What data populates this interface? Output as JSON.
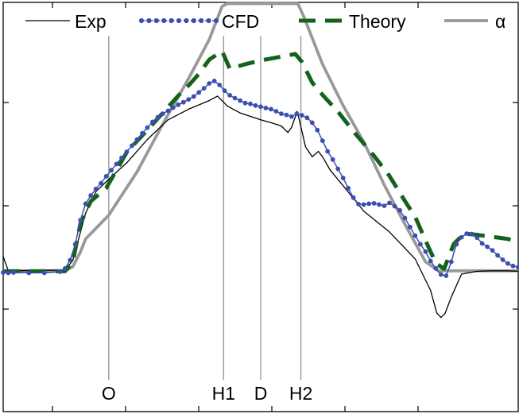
{
  "chart_data": {
    "type": "line",
    "title": "",
    "xlabel": "",
    "ylabel": "",
    "xlim": [
      0,
      100
    ],
    "ylim": [
      0,
      100
    ],
    "grid": false,
    "legend_position": "top",
    "markers": [
      {
        "label": "O",
        "x": 20.5
      },
      {
        "label": "H1",
        "x": 42.8
      },
      {
        "label": "D",
        "x": 50.0
      },
      {
        "label": "H2",
        "x": 57.8
      }
    ],
    "series": [
      {
        "name": "Exp",
        "color": "#000000",
        "style": "thin-solid",
        "x": [
          0,
          1,
          2,
          12,
          13.5,
          16,
          18,
          20.5,
          24,
          28,
          32,
          36,
          40,
          41.6,
          43.6,
          46,
          50,
          52,
          54,
          55.3,
          56,
          57.1,
          58.1,
          58.7,
          60,
          61.2,
          62.1,
          63.5,
          66,
          70,
          75,
          80,
          83,
          84.2,
          85,
          85.8,
          87,
          89,
          92,
          95,
          98,
          100
        ],
        "y": [
          37.9,
          34.4,
          34.4,
          34.6,
          36.9,
          48.5,
          53.7,
          56.8,
          60.8,
          66.5,
          71.3,
          73.9,
          76.0,
          77.1,
          74.6,
          73.0,
          71.3,
          70.6,
          69.8,
          68.2,
          69.5,
          73.4,
          68.0,
          64.7,
          62.3,
          63.6,
          62.1,
          59.0,
          55.2,
          49.0,
          43.9,
          37.3,
          29.6,
          24.1,
          23.0,
          24.0,
          28.0,
          33.6,
          34.3,
          34.4,
          34.4,
          34.3
        ]
      },
      {
        "name": "CFD",
        "color": "#3d4eb0",
        "style": "dotted-markers",
        "x": [
          0,
          1,
          2,
          5,
          8,
          11,
          12,
          13,
          14,
          15,
          16,
          17,
          18,
          19,
          20,
          21,
          22,
          23,
          24,
          25,
          26,
          27,
          28,
          29,
          30,
          31,
          32,
          33,
          34,
          35,
          36,
          37,
          38,
          39,
          40,
          41,
          42,
          43,
          44,
          45,
          46,
          47,
          48,
          49,
          50,
          51,
          52,
          53,
          54,
          55,
          56,
          57,
          58,
          59,
          60,
          61,
          62,
          63,
          64,
          65,
          66,
          67,
          68,
          69,
          70,
          71,
          72,
          73,
          74,
          75,
          76,
          77,
          78,
          79,
          80,
          81,
          82,
          83,
          84,
          85,
          86,
          87,
          88,
          89,
          90,
          91,
          92,
          93,
          94,
          95,
          96,
          97,
          98,
          99,
          100
        ],
        "y": [
          34.0,
          33.9,
          34.0,
          33.9,
          33.9,
          34.2,
          35.0,
          37.0,
          40.9,
          46.8,
          50.8,
          52.8,
          54.4,
          55.8,
          57.5,
          59.0,
          60.5,
          62.0,
          63.5,
          65.0,
          66.5,
          68.0,
          69.4,
          70.8,
          71.9,
          72.8,
          73.5,
          74.3,
          75.0,
          75.6,
          76.3,
          77.0,
          78.0,
          79.0,
          80.2,
          80.8,
          79.8,
          78.4,
          77.3,
          76.6,
          76.0,
          75.4,
          75.2,
          74.8,
          74.5,
          74.2,
          73.9,
          73.4,
          72.8,
          72.5,
          72.1,
          72.8,
          72.4,
          71.8,
          70.6,
          68.8,
          66.2,
          63.6,
          61.6,
          59.3,
          57.1,
          54.6,
          52.3,
          50.7,
          50.6,
          50.8,
          50.9,
          50.6,
          50.3,
          51.0,
          50.2,
          49.2,
          47.3,
          45.1,
          43.0,
          40.9,
          39.1,
          36.8,
          35.0,
          33.5,
          33.2,
          36.6,
          40.9,
          42.6,
          43.5,
          43.4,
          42.5,
          41.1,
          40.3,
          39.4,
          38.2,
          37.1,
          36.2,
          35.6,
          35.3
        ]
      },
      {
        "name": "Theory",
        "color": "#13621c",
        "style": "dashed",
        "x": [
          0,
          1,
          2,
          12,
          13.5,
          15,
          17,
          20,
          24,
          28,
          32,
          34,
          36.3,
          38,
          40,
          42.5,
          44,
          47,
          50,
          53,
          55,
          56.7,
          58,
          60,
          62,
          65,
          68,
          72,
          75,
          78,
          80,
          82,
          84,
          85.6,
          87.5,
          89.5,
          92,
          95,
          98,
          100
        ],
        "y": [
          34.2,
          34.3,
          34.3,
          34.3,
          36.5,
          46.0,
          51.4,
          54.6,
          63.4,
          68.8,
          74.4,
          77.2,
          80.1,
          82.5,
          86.0,
          88.1,
          83.8,
          84.9,
          85.8,
          86.5,
          87.0,
          87.4,
          85.5,
          80.4,
          77.4,
          73.3,
          68.5,
          62.5,
          57.6,
          51.5,
          47.6,
          41.8,
          36.3,
          34.9,
          41.0,
          43.5,
          43.2,
          42.7,
          42.2,
          41.4
        ]
      },
      {
        "name": "α",
        "color": "#999999",
        "style": "thick-solid",
        "x": [
          0,
          12,
          13.5,
          15,
          16,
          20.5,
          26,
          31,
          36,
          40,
          42.5,
          43.5,
          45,
          50,
          55,
          57.2,
          58.3,
          62,
          66,
          70,
          74,
          78,
          82,
          84.5,
          86,
          88,
          92,
          96,
          100
        ],
        "y": [
          34.4,
          34.4,
          35.4,
          39.0,
          42.2,
          48.0,
          58.6,
          70.3,
          81.4,
          90.9,
          99.0,
          99.7,
          99.7,
          99.7,
          99.7,
          99.7,
          96.7,
          84.9,
          74.8,
          65.9,
          55.4,
          45.8,
          36.6,
          34.4,
          34.4,
          34.4,
          34.4,
          34.4,
          34.4
        ]
      }
    ]
  }
}
